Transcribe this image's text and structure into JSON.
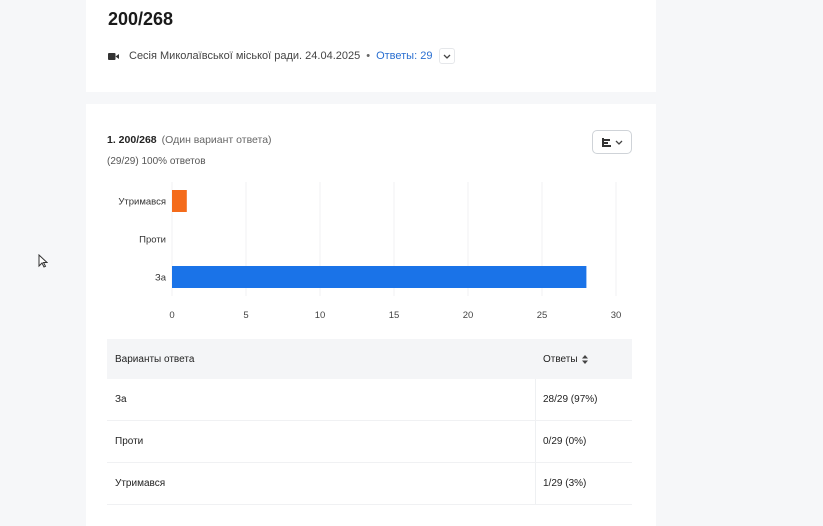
{
  "header": {
    "title": "200/268",
    "session_name": "Сесія Миколаївської міської ради. 24.04.2025",
    "separator": "•",
    "responses_link": "Ответы: 29"
  },
  "question": {
    "number_title": "1. 200/268",
    "type": "(Один вариант ответа)",
    "summary": "(29/29) 100% ответов"
  },
  "chart_data": {
    "type": "bar",
    "orientation": "horizontal",
    "categories": [
      "Утримався",
      "Проти",
      "За"
    ],
    "values": [
      1,
      0,
      28
    ],
    "colors": [
      "#f46b1b",
      "#f46b1b",
      "#1a73e8"
    ],
    "x_ticks": [
      0,
      5,
      10,
      15,
      20,
      25,
      30
    ],
    "xlim": [
      0,
      30
    ],
    "grid": true
  },
  "table": {
    "headers": [
      "Варианты ответа",
      "Ответы"
    ],
    "rows": [
      {
        "option": "За",
        "answers": "28/29 (97%)"
      },
      {
        "option": "Проти",
        "answers": "0/29 (0%)"
      },
      {
        "option": "Утримався",
        "answers": "1/29 (3%)"
      }
    ]
  },
  "icons": {
    "camera": "video-camera-icon",
    "chevron": "chevron-down-icon",
    "view": "bar-chart-view-icon",
    "sort": "sort-icon",
    "cursor": "mouse-cursor-icon"
  }
}
